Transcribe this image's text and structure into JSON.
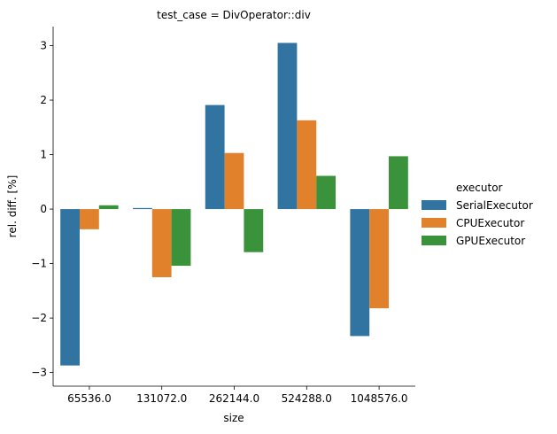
{
  "chart_data": {
    "type": "bar",
    "title": "test_case = DivOperator::div",
    "xlabel": "size",
    "ylabel": "rel. diff. [%]",
    "categories": [
      "65536.0",
      "131072.0",
      "262144.0",
      "524288.0",
      "1048576.0"
    ],
    "ylim": [
      -3.25,
      3.35
    ],
    "yticks": [
      -3,
      -2,
      -1,
      0,
      1,
      2,
      3
    ],
    "ytick_labels": [
      "−3",
      "−2",
      "−1",
      "0",
      "1",
      "2",
      "3"
    ],
    "legend_title": "executor",
    "legend_position": "right",
    "series": [
      {
        "name": "SerialExecutor",
        "color": "#3274a1",
        "values": [
          -2.87,
          0.02,
          1.91,
          3.05,
          -2.33
        ]
      },
      {
        "name": "CPUExecutor",
        "color": "#e1812c",
        "values": [
          -0.37,
          -1.25,
          1.03,
          1.63,
          -1.82
        ]
      },
      {
        "name": "GPUExecutor",
        "color": "#3a923a",
        "values": [
          0.07,
          -1.04,
          -0.79,
          0.61,
          0.97
        ]
      }
    ]
  }
}
